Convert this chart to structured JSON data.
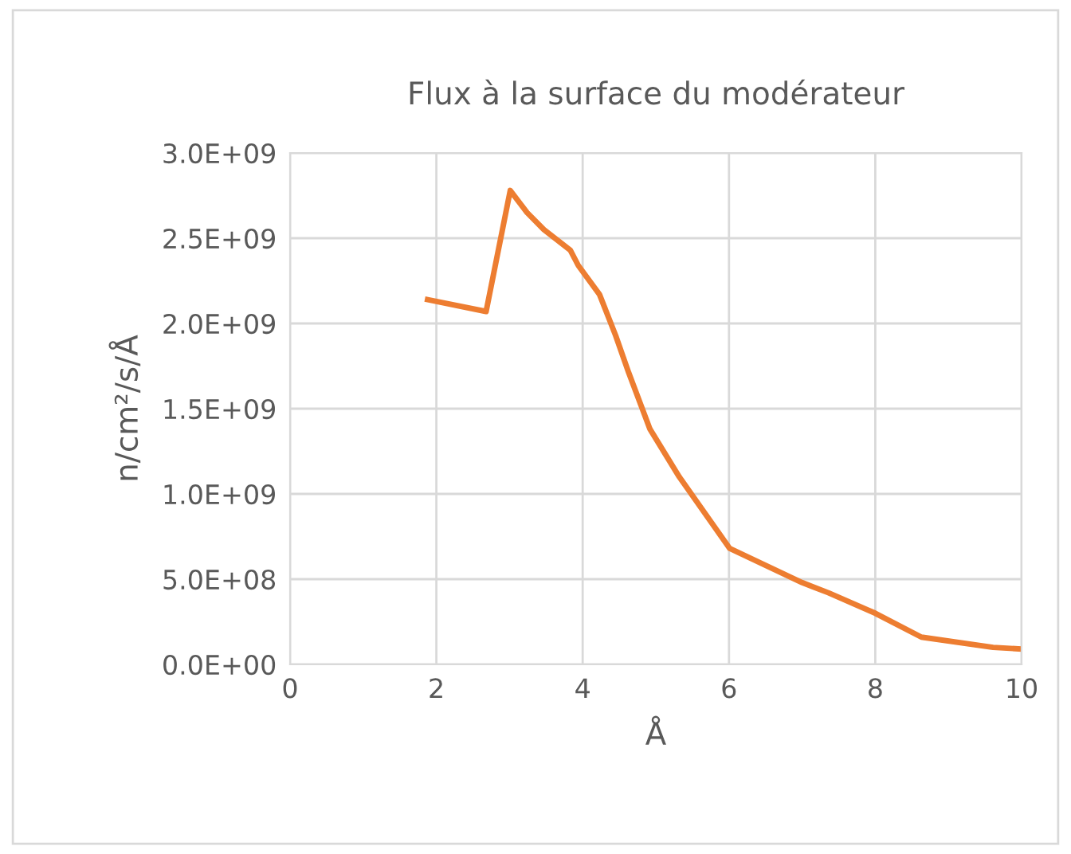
{
  "chart_data": {
    "type": "line",
    "title": "Flux à la surface du modérateur",
    "xlabel": "Å",
    "ylabel": "n/cm²/s/Å",
    "x": [
      1.88,
      2.68,
      3.01,
      3.24,
      3.47,
      3.83,
      3.94,
      4.23,
      4.45,
      4.63,
      4.92,
      5.32,
      6.01,
      7.0,
      7.36,
      8.0,
      8.63,
      9.61,
      10.0
    ],
    "series": [
      {
        "color": "#ed7d31",
        "values": [
          2140000000.0,
          2070000000.0,
          2780000000.0,
          2650000000.0,
          2550000000.0,
          2430000000.0,
          2340000000.0,
          2170000000.0,
          1930000000.0,
          1710000000.0,
          1380000000.0,
          1100000000.0,
          680000000.0,
          480000000.0,
          420000000.0,
          300000000.0,
          160000000.0,
          100000000.0,
          90000000.0
        ]
      }
    ],
    "xlim": [
      0,
      10
    ],
    "xticks": [
      0,
      2,
      4,
      6,
      8,
      10
    ],
    "ylim": [
      0,
      3000000000.0
    ],
    "yticks": [
      {
        "value": 0,
        "label": "0.0E+00"
      },
      {
        "value": 500000000.0,
        "label": "5.0E+08"
      },
      {
        "value": 1000000000.0,
        "label": "1.0E+09"
      },
      {
        "value": 1500000000.0,
        "label": "1.5E+09"
      },
      {
        "value": 2000000000.0,
        "label": "2.0E+09"
      },
      {
        "value": 2500000000.0,
        "label": "2.5E+09"
      },
      {
        "value": 3000000000.0,
        "label": "3.0E+09"
      }
    ],
    "grid": true,
    "marker": "none",
    "line_style": "solid"
  }
}
